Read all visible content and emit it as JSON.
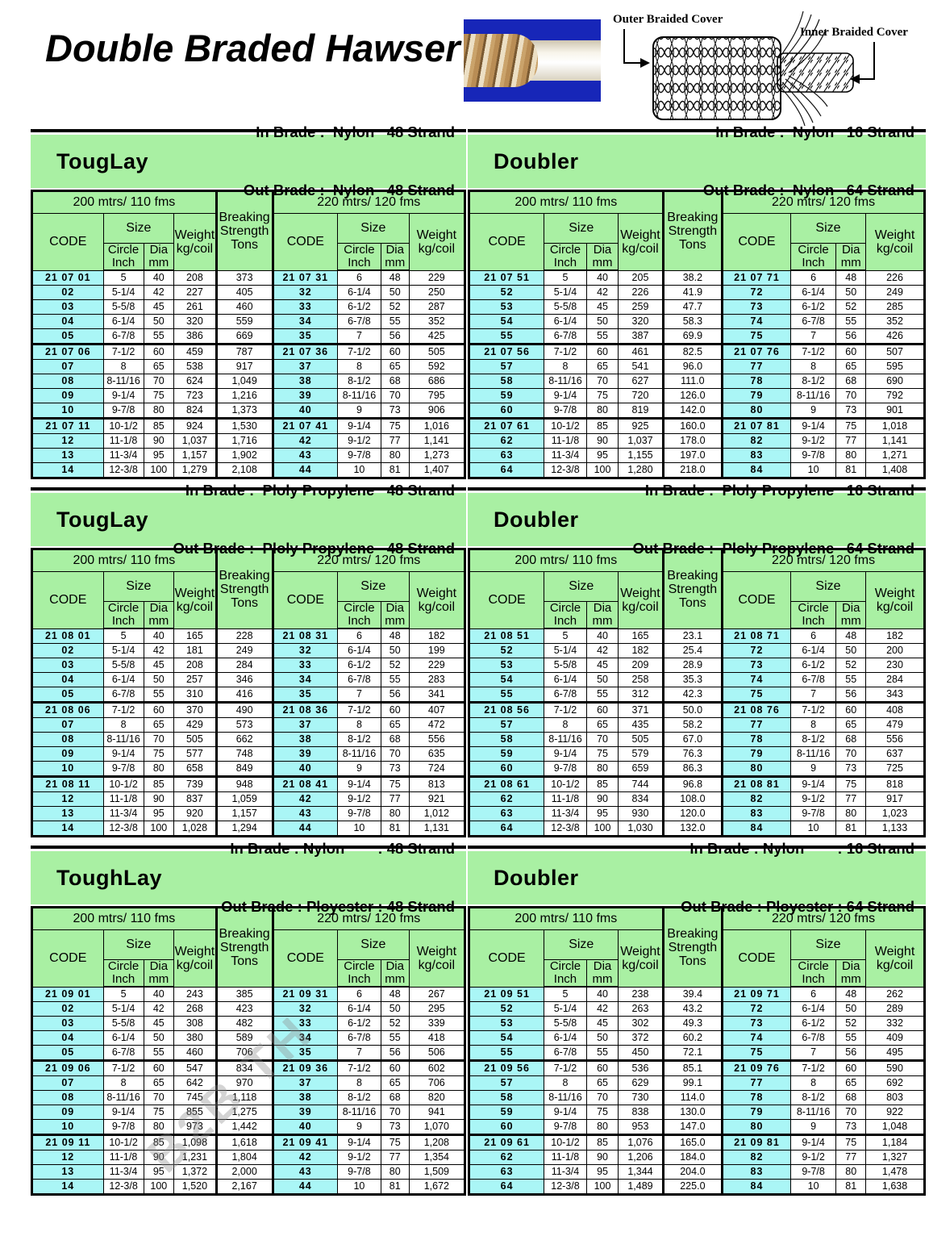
{
  "page": {
    "title": "Double Braded Hawser"
  },
  "diagram": {
    "outer_label": "Outer Braided Cover",
    "inner_label": "Inner Braided Cover"
  },
  "watermark": "B2B TH",
  "colors": {
    "header_green": "#a9f0a3",
    "code_cyan": "#aaf6f6",
    "photo_blue": "#1726b8"
  },
  "headers": {
    "span_200": "200 mtrs/ 110 fms",
    "span_220": "220 mtrs/ 120 fms",
    "code": "CODE",
    "size": "Size",
    "circle": "Circle\nInch",
    "dia": "Dia\nmm",
    "weight": "Weight\nkg/coil",
    "breaking": "Breaking\nStrength\nTons"
  },
  "blocks": [
    {
      "name": "TougLay",
      "in_line": "In Brade :  Nylon   48 Strand",
      "out_line": "Out Brade :  Nylon   48 Strand",
      "code_prefix": "21 07",
      "rows_200": [
        [
          "01",
          "5",
          "40",
          "208",
          "373"
        ],
        [
          "02",
          "5-1/4",
          "42",
          "227",
          "405"
        ],
        [
          "03",
          "5-5/8",
          "45",
          "261",
          "460"
        ],
        [
          "04",
          "6-1/4",
          "50",
          "320",
          "559"
        ],
        [
          "05",
          "6-7/8",
          "55",
          "386",
          "669"
        ],
        [
          "06",
          "7-1/2",
          "60",
          "459",
          "787"
        ],
        [
          "07",
          "8",
          "65",
          "538",
          "917"
        ],
        [
          "08",
          "8-11/16",
          "70",
          "624",
          "1,049"
        ],
        [
          "09",
          "9-1/4",
          "75",
          "723",
          "1,216"
        ],
        [
          "10",
          "9-7/8",
          "80",
          "824",
          "1,373"
        ],
        [
          "11",
          "10-1/2",
          "85",
          "924",
          "1,530"
        ],
        [
          "12",
          "11-1/8",
          "90",
          "1,037",
          "1,716"
        ],
        [
          "13",
          "11-3/4",
          "95",
          "1,157",
          "1,902"
        ],
        [
          "14",
          "12-3/8",
          "100",
          "1,279",
          "2,108"
        ]
      ],
      "rows_220": [
        [
          "31",
          "6",
          "48",
          "229"
        ],
        [
          "32",
          "6-1/4",
          "50",
          "250"
        ],
        [
          "33",
          "6-1/2",
          "52",
          "287"
        ],
        [
          "34",
          "6-7/8",
          "55",
          "352"
        ],
        [
          "35",
          "7",
          "56",
          "425"
        ],
        [
          "36",
          "7-1/2",
          "60",
          "505"
        ],
        [
          "37",
          "8",
          "65",
          "592"
        ],
        [
          "38",
          "8-1/2",
          "68",
          "686"
        ],
        [
          "39",
          "8-11/16",
          "70",
          "795"
        ],
        [
          "40",
          "9",
          "73",
          "906"
        ],
        [
          "41",
          "9-1/4",
          "75",
          "1,016"
        ],
        [
          "42",
          "9-1/2",
          "77",
          "1,141"
        ],
        [
          "43",
          "9-7/8",
          "80",
          "1,273"
        ],
        [
          "44",
          "10",
          "81",
          "1,407"
        ]
      ]
    },
    {
      "name": "Doubler",
      "in_line": "In Brade :  Nylon   16 Strand",
      "out_line": "Out Brade :  Nylon   64 Strand",
      "code_prefix": "21 07",
      "rows_200": [
        [
          "51",
          "5",
          "40",
          "205",
          "38.2"
        ],
        [
          "52",
          "5-1/4",
          "42",
          "226",
          "41.9"
        ],
        [
          "53",
          "5-5/8",
          "45",
          "259",
          "47.7"
        ],
        [
          "54",
          "6-1/4",
          "50",
          "320",
          "58.3"
        ],
        [
          "55",
          "6-7/8",
          "55",
          "387",
          "69.9"
        ],
        [
          "56",
          "7-1/2",
          "60",
          "461",
          "82.5"
        ],
        [
          "57",
          "8",
          "65",
          "541",
          "96.0"
        ],
        [
          "58",
          "8-11/16",
          "70",
          "627",
          "111.0"
        ],
        [
          "59",
          "9-1/4",
          "75",
          "720",
          "126.0"
        ],
        [
          "60",
          "9-7/8",
          "80",
          "819",
          "142.0"
        ],
        [
          "61",
          "10-1/2",
          "85",
          "925",
          "160.0"
        ],
        [
          "62",
          "11-1/8",
          "90",
          "1,037",
          "178.0"
        ],
        [
          "63",
          "11-3/4",
          "95",
          "1,155",
          "197.0"
        ],
        [
          "64",
          "12-3/8",
          "100",
          "1,280",
          "218.0"
        ]
      ],
      "rows_220": [
        [
          "71",
          "6",
          "48",
          "226"
        ],
        [
          "72",
          "6-1/4",
          "50",
          "249"
        ],
        [
          "73",
          "6-1/2",
          "52",
          "285"
        ],
        [
          "74",
          "6-7/8",
          "55",
          "352"
        ],
        [
          "75",
          "7",
          "56",
          "426"
        ],
        [
          "76",
          "7-1/2",
          "60",
          "507"
        ],
        [
          "77",
          "8",
          "65",
          "595"
        ],
        [
          "78",
          "8-1/2",
          "68",
          "690"
        ],
        [
          "79",
          "8-11/16",
          "70",
          "792"
        ],
        [
          "80",
          "9",
          "73",
          "901"
        ],
        [
          "81",
          "9-1/4",
          "75",
          "1,018"
        ],
        [
          "82",
          "9-1/2",
          "77",
          "1,141"
        ],
        [
          "83",
          "9-7/8",
          "80",
          "1,271"
        ],
        [
          "84",
          "10",
          "81",
          "1,408"
        ]
      ]
    },
    {
      "name": "TougLay",
      "in_line": "In Brade :  Ploly Propylene   48 Strand",
      "out_line": "Out Brade :  Ploly Propylene   48 Strand",
      "code_prefix": "21 08",
      "rows_200": [
        [
          "01",
          "5",
          "40",
          "165",
          "228"
        ],
        [
          "02",
          "5-1/4",
          "42",
          "181",
          "249"
        ],
        [
          "03",
          "5-5/8",
          "45",
          "208",
          "284"
        ],
        [
          "04",
          "6-1/4",
          "50",
          "257",
          "346"
        ],
        [
          "05",
          "6-7/8",
          "55",
          "310",
          "416"
        ],
        [
          "06",
          "7-1/2",
          "60",
          "370",
          "490"
        ],
        [
          "07",
          "8",
          "65",
          "429",
          "573"
        ],
        [
          "08",
          "8-11/16",
          "70",
          "505",
          "662"
        ],
        [
          "09",
          "9-1/4",
          "75",
          "577",
          "748"
        ],
        [
          "10",
          "9-7/8",
          "80",
          "658",
          "849"
        ],
        [
          "11",
          "10-1/2",
          "85",
          "739",
          "948"
        ],
        [
          "12",
          "11-1/8",
          "90",
          "837",
          "1,059"
        ],
        [
          "13",
          "11-3/4",
          "95",
          "920",
          "1,157"
        ],
        [
          "14",
          "12-3/8",
          "100",
          "1,028",
          "1,294"
        ]
      ],
      "rows_220": [
        [
          "31",
          "6",
          "48",
          "182"
        ],
        [
          "32",
          "6-1/4",
          "50",
          "199"
        ],
        [
          "33",
          "6-1/2",
          "52",
          "229"
        ],
        [
          "34",
          "6-7/8",
          "55",
          "283"
        ],
        [
          "35",
          "7",
          "56",
          "341"
        ],
        [
          "36",
          "7-1/2",
          "60",
          "407"
        ],
        [
          "37",
          "8",
          "65",
          "472"
        ],
        [
          "38",
          "8-1/2",
          "68",
          "556"
        ],
        [
          "39",
          "8-11/16",
          "70",
          "635"
        ],
        [
          "40",
          "9",
          "73",
          "724"
        ],
        [
          "41",
          "9-1/4",
          "75",
          "813"
        ],
        [
          "42",
          "9-1/2",
          "77",
          "921"
        ],
        [
          "43",
          "9-7/8",
          "80",
          "1,012"
        ],
        [
          "44",
          "10",
          "81",
          "1,131"
        ]
      ]
    },
    {
      "name": "Doubler",
      "in_line": "In Brade :  Ploly Propylene   16 Strand",
      "out_line": "Out Brade :  Ploly Propylene   64 Strand",
      "code_prefix": "21 08",
      "rows_200": [
        [
          "51",
          "5",
          "40",
          "165",
          "23.1"
        ],
        [
          "52",
          "5-1/4",
          "42",
          "182",
          "25.4"
        ],
        [
          "53",
          "5-5/8",
          "45",
          "209",
          "28.9"
        ],
        [
          "54",
          "6-1/4",
          "50",
          "258",
          "35.3"
        ],
        [
          "55",
          "6-7/8",
          "55",
          "312",
          "42.3"
        ],
        [
          "56",
          "7-1/2",
          "60",
          "371",
          "50.0"
        ],
        [
          "57",
          "8",
          "65",
          "435",
          "58.2"
        ],
        [
          "58",
          "8-11/16",
          "70",
          "505",
          "67.0"
        ],
        [
          "59",
          "9-1/4",
          "75",
          "579",
          "76.3"
        ],
        [
          "60",
          "9-7/8",
          "80",
          "659",
          "86.3"
        ],
        [
          "61",
          "10-1/2",
          "85",
          "744",
          "96.8"
        ],
        [
          "62",
          "11-1/8",
          "90",
          "834",
          "108.0"
        ],
        [
          "63",
          "11-3/4",
          "95",
          "930",
          "120.0"
        ],
        [
          "64",
          "12-3/8",
          "100",
          "1,030",
          "132.0"
        ]
      ],
      "rows_220": [
        [
          "71",
          "6",
          "48",
          "182"
        ],
        [
          "72",
          "6-1/4",
          "50",
          "200"
        ],
        [
          "73",
          "6-1/2",
          "52",
          "230"
        ],
        [
          "74",
          "6-7/8",
          "55",
          "284"
        ],
        [
          "75",
          "7",
          "56",
          "343"
        ],
        [
          "76",
          "7-1/2",
          "60",
          "408"
        ],
        [
          "77",
          "8",
          "65",
          "479"
        ],
        [
          "78",
          "8-1/2",
          "68",
          "556"
        ],
        [
          "79",
          "8-11/16",
          "70",
          "637"
        ],
        [
          "80",
          "9",
          "73",
          "725"
        ],
        [
          "81",
          "9-1/4",
          "75",
          "818"
        ],
        [
          "82",
          "9-1/2",
          "77",
          "917"
        ],
        [
          "83",
          "9-7/8",
          "80",
          "1,023"
        ],
        [
          "84",
          "10",
          "81",
          "1,133"
        ]
      ]
    },
    {
      "name": "ToughLay",
      "in_line": "In Brade : Nylon        : 48 Strand",
      "out_line": "Out Brade : Ployester : 48 Strand",
      "code_prefix": "21 09",
      "rows_200": [
        [
          "01",
          "5",
          "40",
          "243",
          "385"
        ],
        [
          "02",
          "5-1/4",
          "42",
          "268",
          "423"
        ],
        [
          "03",
          "5-5/8",
          "45",
          "308",
          "482"
        ],
        [
          "04",
          "6-1/4",
          "50",
          "380",
          "589"
        ],
        [
          "05",
          "6-7/8",
          "55",
          "460",
          "706"
        ],
        [
          "06",
          "7-1/2",
          "60",
          "547",
          "834"
        ],
        [
          "07",
          "8",
          "65",
          "642",
          "970"
        ],
        [
          "08",
          "8-11/16",
          "70",
          "745",
          "1,118"
        ],
        [
          "09",
          "9-1/4",
          "75",
          "855",
          "1,275"
        ],
        [
          "10",
          "9-7/8",
          "80",
          "973",
          "1,442"
        ],
        [
          "11",
          "10-1/2",
          "85",
          "1,098",
          "1,618"
        ],
        [
          "12",
          "11-1/8",
          "90",
          "1,231",
          "1,804"
        ],
        [
          "13",
          "11-3/4",
          "95",
          "1,372",
          "2,000"
        ],
        [
          "14",
          "12-3/8",
          "100",
          "1,520",
          "2,167"
        ]
      ],
      "rows_220": [
        [
          "31",
          "6",
          "48",
          "267"
        ],
        [
          "32",
          "6-1/4",
          "50",
          "295"
        ],
        [
          "33",
          "6-1/2",
          "52",
          "339"
        ],
        [
          "34",
          "6-7/8",
          "55",
          "418"
        ],
        [
          "35",
          "7",
          "56",
          "506"
        ],
        [
          "36",
          "7-1/2",
          "60",
          "602"
        ],
        [
          "37",
          "8",
          "65",
          "706"
        ],
        [
          "38",
          "8-1/2",
          "68",
          "820"
        ],
        [
          "39",
          "8-11/16",
          "70",
          "941"
        ],
        [
          "40",
          "9",
          "73",
          "1,070"
        ],
        [
          "41",
          "9-1/4",
          "75",
          "1,208"
        ],
        [
          "42",
          "9-1/2",
          "77",
          "1,354"
        ],
        [
          "43",
          "9-7/8",
          "80",
          "1,509"
        ],
        [
          "44",
          "10",
          "81",
          "1,672"
        ]
      ]
    },
    {
      "name": "Doubler",
      "in_line": "In Brade : Nylon        : 16 Strand",
      "out_line": "Out Brade : Ployester : 64 Strand",
      "code_prefix": "21 09",
      "rows_200": [
        [
          "51",
          "5",
          "40",
          "238",
          "39.4"
        ],
        [
          "52",
          "5-1/4",
          "42",
          "263",
          "43.2"
        ],
        [
          "53",
          "5-5/8",
          "45",
          "302",
          "49.3"
        ],
        [
          "54",
          "6-1/4",
          "50",
          "372",
          "60.2"
        ],
        [
          "55",
          "6-7/8",
          "55",
          "450",
          "72.1"
        ],
        [
          "56",
          "7-1/2",
          "60",
          "536",
          "85.1"
        ],
        [
          "57",
          "8",
          "65",
          "629",
          "99.1"
        ],
        [
          "58",
          "8-11/16",
          "70",
          "730",
          "114.0"
        ],
        [
          "59",
          "9-1/4",
          "75",
          "838",
          "130.0"
        ],
        [
          "60",
          "9-7/8",
          "80",
          "953",
          "147.0"
        ],
        [
          "61",
          "10-1/2",
          "85",
          "1,076",
          "165.0"
        ],
        [
          "62",
          "11-1/8",
          "90",
          "1,206",
          "184.0"
        ],
        [
          "63",
          "11-3/4",
          "95",
          "1,344",
          "204.0"
        ],
        [
          "64",
          "12-3/8",
          "100",
          "1,489",
          "225.0"
        ]
      ],
      "rows_220": [
        [
          "71",
          "6",
          "48",
          "262"
        ],
        [
          "72",
          "6-1/4",
          "50",
          "289"
        ],
        [
          "73",
          "6-1/2",
          "52",
          "332"
        ],
        [
          "74",
          "6-7/8",
          "55",
          "409"
        ],
        [
          "75",
          "7",
          "56",
          "495"
        ],
        [
          "76",
          "7-1/2",
          "60",
          "590"
        ],
        [
          "77",
          "8",
          "65",
          "692"
        ],
        [
          "78",
          "8-1/2",
          "68",
          "803"
        ],
        [
          "79",
          "8-11/16",
          "70",
          "922"
        ],
        [
          "80",
          "9",
          "73",
          "1,048"
        ],
        [
          "81",
          "9-1/4",
          "75",
          "1,184"
        ],
        [
          "82",
          "9-1/2",
          "77",
          "1,327"
        ],
        [
          "83",
          "9-7/8",
          "80",
          "1,478"
        ],
        [
          "84",
          "10",
          "81",
          "1,638"
        ]
      ]
    }
  ]
}
